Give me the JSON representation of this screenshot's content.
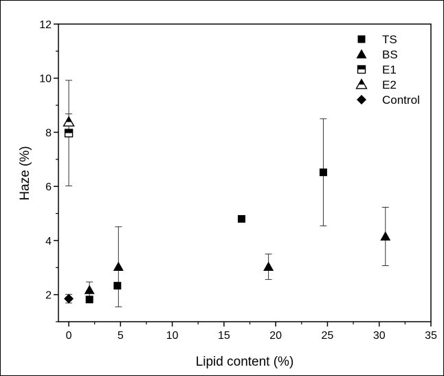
{
  "chart_data": {
    "type": "scatter",
    "title": "",
    "xlabel": "Lipid content (%)",
    "ylabel": "Haze (%)",
    "xlim": [
      -1,
      35
    ],
    "ylim": [
      1,
      12
    ],
    "xticks": [
      "0",
      "5",
      "10",
      "15",
      "20",
      "25",
      "30",
      "35"
    ],
    "yticks": [
      "2",
      "4",
      "6",
      "8",
      "10",
      "12"
    ],
    "grid": false,
    "legend_position": "top-right",
    "series": [
      {
        "name": "TS",
        "marker": "square-filled",
        "points": [
          {
            "x": 2.0,
            "y": 1.82,
            "err": 0.12
          },
          {
            "x": 4.7,
            "y": 2.33,
            "err": 0
          },
          {
            "x": 16.7,
            "y": 4.8,
            "err": 0
          },
          {
            "x": 24.6,
            "y": 6.52,
            "err": 1.98
          }
        ]
      },
      {
        "name": "BS",
        "marker": "triangle-filled",
        "points": [
          {
            "x": 2.0,
            "y": 2.17,
            "err": 0.3
          },
          {
            "x": 4.8,
            "y": 3.03,
            "err": 1.48
          },
          {
            "x": 19.3,
            "y": 3.03,
            "err": 0.47
          },
          {
            "x": 30.6,
            "y": 4.15,
            "err": 1.08
          }
        ]
      },
      {
        "name": "E1",
        "marker": "square-half",
        "points": [
          {
            "x": 0.0,
            "y": 7.97,
            "err": 1.95
          }
        ]
      },
      {
        "name": "E2",
        "marker": "triangle-half",
        "points": [
          {
            "x": 0.0,
            "y": 8.38,
            "err": 0.3
          }
        ]
      },
      {
        "name": "Control",
        "marker": "diamond-filled",
        "points": [
          {
            "x": 0.0,
            "y": 1.85,
            "err": 0.16
          }
        ]
      }
    ]
  }
}
